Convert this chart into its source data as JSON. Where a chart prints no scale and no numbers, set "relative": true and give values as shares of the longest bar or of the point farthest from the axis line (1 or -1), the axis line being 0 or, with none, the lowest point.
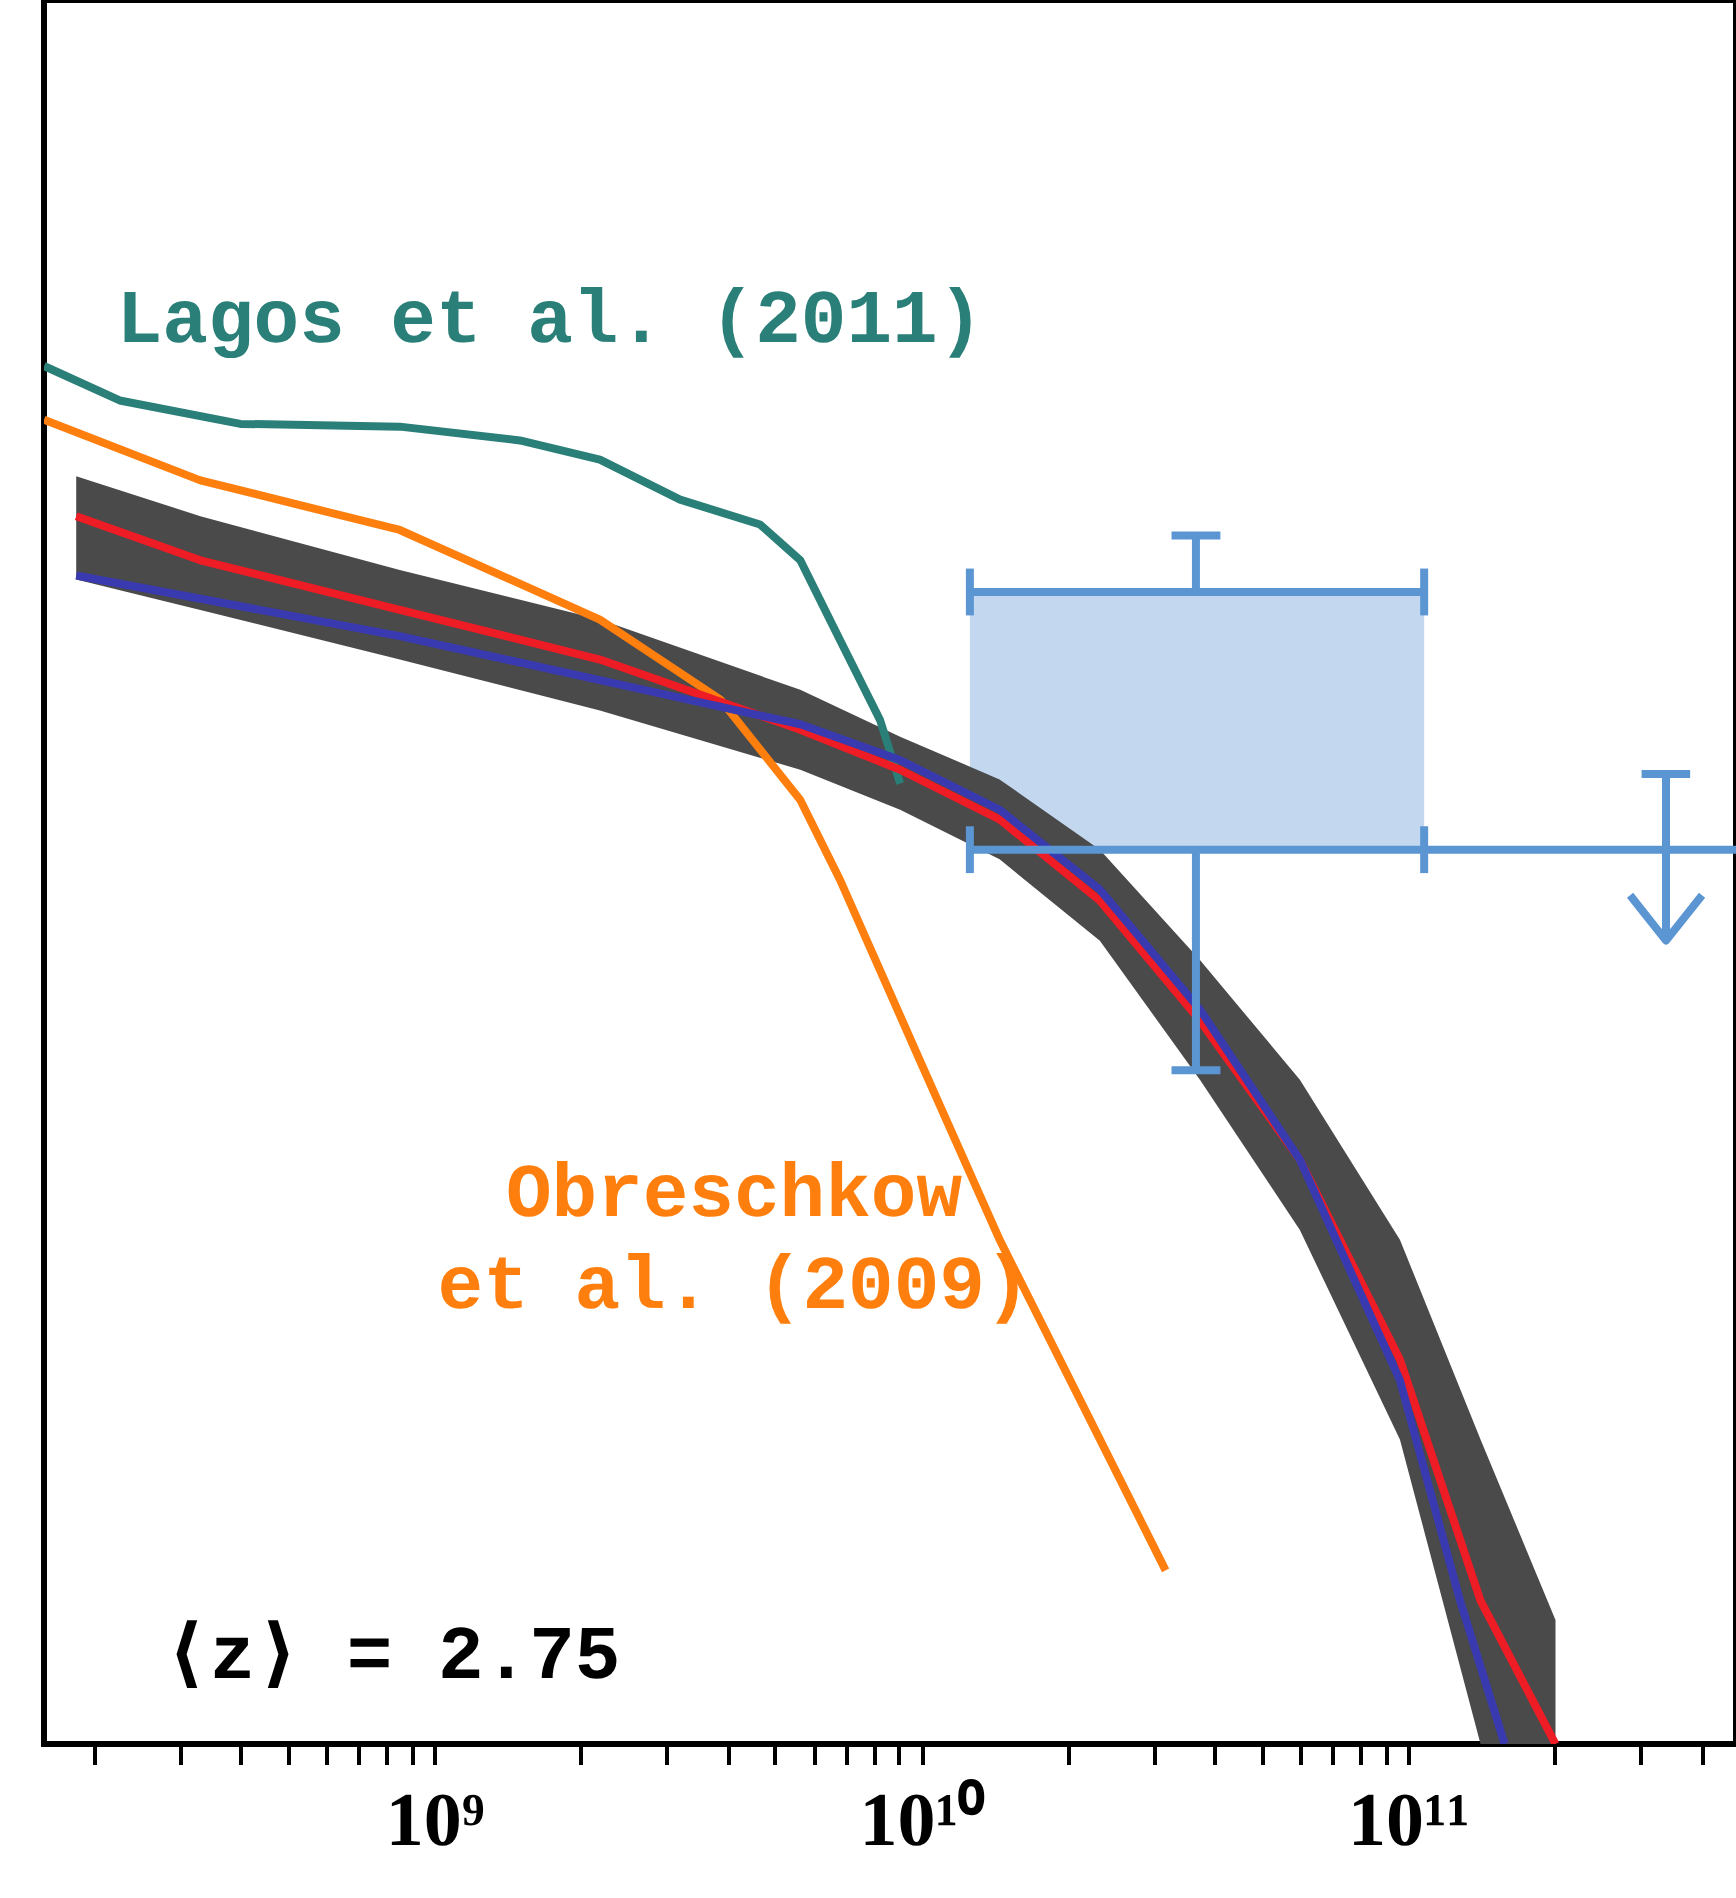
{
  "chart_data": {
    "type": "line",
    "relative": true,
    "log": "x",
    "xlim": [
      158000000.0,
      472000000000.0
    ],
    "xticks": [
      {
        "value": 200000000.0,
        "label": null
      },
      {
        "value": 300000000.0,
        "label": null
      },
      {
        "value": 400000000.0,
        "label": null
      },
      {
        "value": 500000000.0,
        "label": null
      },
      {
        "value": 600000000.0,
        "label": null
      },
      {
        "value": 700000000.0,
        "label": null
      },
      {
        "value": 800000000.0,
        "label": null
      },
      {
        "value": 900000000.0,
        "label": null
      },
      {
        "value": 1000000000.0,
        "label": "10⁹"
      },
      {
        "value": 2000000000.0,
        "label": null
      },
      {
        "value": 3000000000.0,
        "label": null
      },
      {
        "value": 4000000000.0,
        "label": null
      },
      {
        "value": 5000000000.0,
        "label": null
      },
      {
        "value": 6000000000.0,
        "label": null
      },
      {
        "value": 7000000000.0,
        "label": null
      },
      {
        "value": 8000000000.0,
        "label": null
      },
      {
        "value": 9000000000.0,
        "label": null
      },
      {
        "value": 10000000000.0,
        "label": "10¹⁰"
      },
      {
        "value": 20000000000.0,
        "label": null
      },
      {
        "value": 30000000000.0,
        "label": null
      },
      {
        "value": 40000000000.0,
        "label": null
      },
      {
        "value": 50000000000.0,
        "label": null
      },
      {
        "value": 60000000000.0,
        "label": null
      },
      {
        "value": 70000000000.0,
        "label": null
      },
      {
        "value": 80000000000.0,
        "label": null
      },
      {
        "value": 90000000000.0,
        "label": null
      },
      {
        "value": 100000000000.0,
        "label": "10¹¹"
      },
      {
        "value": 200000000000.0,
        "label": null
      },
      {
        "value": 300000000000.0,
        "label": null
      },
      {
        "value": 400000000000.0,
        "label": null
      }
    ],
    "annotations": [
      "⟨z⟩ = 2.75"
    ],
    "series": [
      {
        "color": "#5b96d3",
        "x": [
          12600000000.0,
          108000000000.0
        ],
        "values": [
          0.836,
          0.836
        ],
        "lower": [
          0.649,
          0.649
        ],
        "upper": [
          0.836,
          0.836
        ]
      },
      {
        "name": "Lagos et al. (2011)",
        "color": "#2a7f78",
        "x": [
          158000000.0,
          226000000.0,
          400000000.0,
          850000000.0,
          1500000000.0,
          2190000000.0,
          3200000000.0,
          4670000000.0,
          5650000000.0,
          6820000000.0,
          8240000000.0,
          9060000000.0
        ],
        "values": [
          1,
          0.975,
          0.958,
          0.956,
          0.946,
          0.932,
          0.903,
          0.885,
          0.859,
          0.801,
          0.743,
          0.697
        ]
      },
      {
        "name": "Obreschkow et al. (2009)",
        "color": "#ff7f0e",
        "x": [
          158000000.0,
          331000000.0,
          850000000.0,
          2190000000.0,
          3870000000.0,
          5650000000.0,
          6820000000.0,
          9950000000.0,
          14500000000.0,
          21200000000.0,
          31800000000.0
        ],
        "values": [
          0.961,
          0.917,
          0.881,
          0.816,
          0.758,
          0.685,
          0.627,
          0.496,
          0.366,
          0.25,
          0.126
        ]
      },
      {
        "color": "#ee1c25",
        "x": [
          184000000.0,
          331000000.0,
          850000000.0,
          2190000000.0,
          5650000000.0,
          9060000000.0,
          14500000000.0,
          23300000000.0,
          37400000000.0,
          60000000000.0,
          96300000000.0,
          141000000000.0,
          201000000000.0
        ],
        "values": [
          0.891,
          0.859,
          0.823,
          0.787,
          0.736,
          0.707,
          0.671,
          0.612,
          0.525,
          0.424,
          0.279,
          0.104,
          0
        ],
        "lower": [
          0.845,
          0.823,
          0.787,
          0.75,
          0.707,
          0.678,
          0.642,
          0.583,
          0.482,
          0.373,
          0.221,
          0,
          0
        ],
        "upper": [
          0.92,
          0.891,
          0.852,
          0.816,
          0.765,
          0.731,
          0.7,
          0.649,
          0.569,
          0.482,
          0.366,
          0.221,
          0.09
        ]
      },
      {
        "color": "#3a3ab0",
        "x": [
          184000000.0,
          850000000.0,
          2190000000.0,
          5650000000.0,
          9060000000.0,
          14500000000.0,
          23300000000.0,
          37400000000.0,
          60000000000.0,
          96300000000.0,
          128000000000.0,
          158000000000.0
        ],
        "values": [
          0.848,
          0.804,
          0.772,
          0.74,
          0.714,
          0.678,
          0.62,
          0.533,
          0.424,
          0.264,
          0.104,
          0
        ]
      },
      {
        "color": "#5b96d3",
        "x": [
          36700000000.0,
          36700000000.0
        ],
        "values": [
          0.836,
          0.877
        ]
      },
      {
        "color": "#5b96d3",
        "x": [
          32700000000.0,
          41200000000.0
        ],
        "values": [
          0.877,
          0.877
        ]
      },
      {
        "color": "#5b96d3",
        "x": [
          12600000000.0,
          12600000000.0
        ],
        "values": [
          0.853,
          0.819
        ]
      },
      {
        "color": "#5b96d3",
        "x": [
          108000000000.0,
          108000000000.0
        ],
        "values": [
          0.853,
          0.819
        ]
      },
      {
        "color": "#5b96d3",
        "x": [
          12600000000.0,
          472000000000.0
        ],
        "values": [
          0.649,
          0.649
        ]
      },
      {
        "color": "#5b96d3",
        "x": [
          12600000000.0,
          12600000000.0
        ],
        "values": [
          0.666,
          0.632
        ]
      },
      {
        "color": "#5b96d3",
        "x": [
          108000000000.0,
          108000000000.0
        ],
        "values": [
          0.666,
          0.632
        ]
      },
      {
        "color": "#5b96d3",
        "x": [
          36700000000.0,
          36700000000.0
        ],
        "values": [
          0.649,
          0.489
        ]
      },
      {
        "color": "#5b96d3",
        "x": [
          32700000000.0,
          41200000000.0
        ],
        "values": [
          0.489,
          0.489
        ]
      },
      {
        "color": "#5b96d3",
        "x": [
          339000000000.0,
          339000000000.0
        ],
        "values": [
          0.704,
          0.583
        ]
      },
      {
        "color": "#5b96d3",
        "x": [
          302000000000.0,
          380000000000.0
        ],
        "values": [
          0.704,
          0.704
        ]
      },
      {
        "color": "#5b96d3",
        "x": [
          286000000000.0,
          339000000000.0,
          402000000000.0
        ],
        "values": [
          0.616,
          0.583,
          0.616
        ]
      }
    ]
  }
}
